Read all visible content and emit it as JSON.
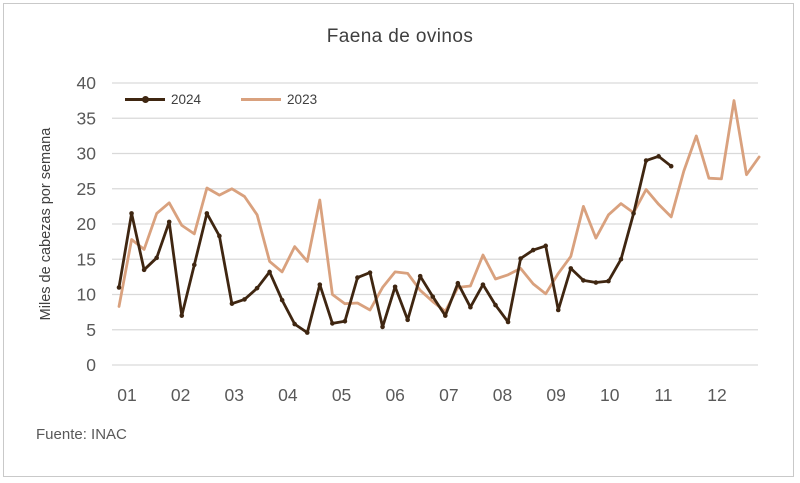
{
  "title": "Faena de ovinos",
  "y_axis": {
    "label": "Miles de cabezas por semana"
  },
  "source": "Fuente: INAC",
  "colors": {
    "series_2024": "#3f2611",
    "series_2023": "#d9a17e",
    "gridline": "#d9d9d9",
    "tick_text": "#595959",
    "title_text": "#3f3f3f",
    "frame_border": "#c9c9c9"
  },
  "chart_data": {
    "type": "line",
    "title": "Faena de ovinos",
    "xlabel": "",
    "ylabel": "Miles de cabezas por semana",
    "source": "Fuente: INAC",
    "x_unit": "week of year",
    "x_tick_labels": [
      "01",
      "02",
      "03",
      "04",
      "05",
      "06",
      "07",
      "08",
      "09",
      "10",
      "11",
      "12"
    ],
    "ylim": [
      0,
      40
    ],
    "yticks": [
      0,
      5,
      10,
      15,
      20,
      25,
      30,
      35,
      40
    ],
    "grid": "horizontal",
    "legend_position": "top-left",
    "series": [
      {
        "name": "2023",
        "color": "#d9a17e",
        "marker": false,
        "values": [
          8.3,
          17.8,
          16.4,
          21.5,
          23.0,
          19.8,
          18.6,
          25.1,
          24.1,
          25.0,
          23.9,
          21.3,
          14.7,
          13.2,
          16.8,
          14.7,
          23.4,
          10.0,
          8.7,
          8.8,
          7.8,
          11.0,
          13.2,
          13.0,
          10.6,
          9.0,
          7.6,
          11.0,
          11.2,
          15.6,
          12.2,
          12.8,
          13.7,
          11.5,
          10.1,
          13.0,
          15.4,
          22.5,
          18.0,
          21.3,
          22.9,
          21.6,
          24.9,
          22.8,
          21.0,
          27.5,
          32.5,
          26.5,
          26.4,
          37.5,
          27.0,
          29.5
        ]
      },
      {
        "name": "2024",
        "color": "#3f2611",
        "marker": true,
        "values": [
          11.0,
          21.5,
          13.5,
          15.2,
          20.3,
          7.0,
          14.2,
          21.5,
          18.3,
          8.7,
          9.3,
          10.9,
          13.2,
          9.2,
          5.8,
          4.6,
          11.4,
          5.9,
          6.2,
          12.4,
          13.1,
          5.4,
          11.1,
          6.4,
          12.6,
          9.7,
          7.0,
          11.6,
          8.2,
          11.4,
          8.5,
          6.1,
          15.1,
          16.3,
          16.9,
          7.8,
          13.7,
          12.0,
          11.7,
          11.9,
          15.0,
          21.5,
          29.0,
          29.6,
          28.2
        ]
      }
    ]
  },
  "legend": {
    "label_2024": "2024",
    "label_2023": "2023"
  }
}
